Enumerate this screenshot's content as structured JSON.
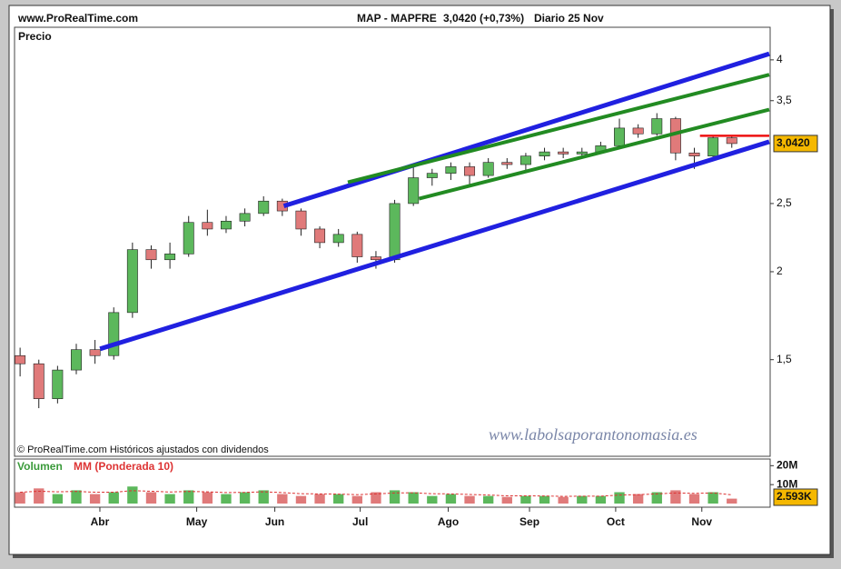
{
  "chart_data": {
    "type": "candlestick",
    "site": "www.ProRealTime.com",
    "symbol": "MAP - MAPFRE",
    "quote": "3,0420 (+0,73%)",
    "period": "Diario  25 Nov",
    "y_label": "Precio",
    "copyright": "© ProRealTime.com Históricos ajustados con dividendos",
    "watermark": "www.labolsaporantonomasia.es",
    "last_price_label": "3,0420",
    "log_scale": true,
    "up_color": "#5cb85c",
    "down_color": "#e07a7a",
    "xlim": [
      -0.2,
      40
    ],
    "xticks": [
      {
        "value": 4.26,
        "label": "Abr"
      },
      {
        "value": 9.43,
        "label": "May"
      },
      {
        "value": 13.6,
        "label": "Jun"
      },
      {
        "value": 18.16,
        "label": "Jul"
      },
      {
        "value": 22.86,
        "label": "Ago"
      },
      {
        "value": 27.2,
        "label": "Sep"
      },
      {
        "value": 31.8,
        "label": "Oct"
      },
      {
        "value": 36.4,
        "label": "Nov"
      }
    ],
    "ylim": [
      1.1,
      4.45
    ],
    "yticks": [
      {
        "value": 1.5,
        "label": "1,5"
      },
      2,
      {
        "value": 2.5,
        "label": "2,5"
      },
      {
        "value": 3.5,
        "label": "3,5"
      },
      4
    ],
    "open": [
      1.52,
      1.48,
      1.32,
      1.45,
      1.55,
      1.52,
      1.75,
      2.15,
      2.08,
      2.12,
      2.35,
      2.3,
      2.36,
      2.42,
      2.52,
      2.44,
      2.3,
      2.2,
      2.26,
      2.1,
      2.08,
      2.5,
      2.72,
      2.76,
      2.82,
      2.74,
      2.86,
      2.84,
      2.92,
      2.96,
      2.94,
      2.96,
      3.02,
      3.2,
      3.14,
      3.3,
      2.95,
      2.92,
      3.1
    ],
    "high": [
      1.56,
      1.5,
      1.47,
      1.58,
      1.6,
      1.78,
      2.2,
      2.18,
      2.2,
      2.4,
      2.45,
      2.4,
      2.46,
      2.56,
      2.54,
      2.46,
      2.32,
      2.3,
      2.28,
      2.14,
      2.53,
      2.85,
      2.8,
      2.86,
      2.86,
      2.9,
      2.9,
      2.95,
      3.0,
      3.0,
      3.0,
      3.06,
      3.3,
      3.24,
      3.36,
      3.32,
      3.0,
      3.12,
      3.12
    ],
    "low": [
      1.42,
      1.28,
      1.3,
      1.43,
      1.48,
      1.5,
      1.72,
      2.02,
      2.02,
      2.1,
      2.25,
      2.27,
      2.32,
      2.4,
      2.4,
      2.25,
      2.16,
      2.17,
      2.06,
      2.02,
      2.06,
      2.48,
      2.65,
      2.7,
      2.66,
      2.72,
      2.8,
      2.78,
      2.88,
      2.9,
      2.9,
      2.94,
      3.0,
      3.1,
      3.12,
      2.88,
      2.8,
      2.9,
      3.0
    ],
    "close": [
      1.48,
      1.32,
      1.45,
      1.55,
      1.52,
      1.75,
      2.15,
      2.08,
      2.12,
      2.35,
      2.3,
      2.36,
      2.42,
      2.52,
      2.44,
      2.3,
      2.2,
      2.26,
      2.1,
      2.08,
      2.5,
      2.72,
      2.76,
      2.82,
      2.74,
      2.86,
      2.84,
      2.92,
      2.96,
      2.94,
      2.96,
      3.02,
      3.2,
      3.14,
      3.3,
      2.95,
      2.92,
      3.1,
      3.042
    ],
    "trendlines": [
      {
        "color": "#2020e0",
        "x": [
          4.27,
          40
        ],
        "y": [
          1.554,
          3.06
        ]
      },
      {
        "color": "#2020e0",
        "x": [
          14.08,
          40
        ],
        "y": [
          2.48,
          4.08
        ]
      },
      {
        "color": "#228b22",
        "x": [
          17.5,
          40
        ],
        "y": [
          2.68,
          3.81
        ]
      },
      {
        "color": "#228b22",
        "x": [
          21.3,
          40
        ],
        "y": [
          2.54,
          3.4
        ]
      },
      {
        "color": "#ee1111",
        "x": [
          36.3,
          40
        ],
        "y": [
          3.12,
          3.12
        ]
      }
    ],
    "volume_label": "Volumen",
    "mm_label": "MM (Ponderada 10)",
    "mm_color": "#dd3333",
    "volume_last_label": "2.593K",
    "volume_ylim": [
      0,
      24
    ],
    "volume_yticks": [
      {
        "value": 20,
        "label": "20M"
      },
      {
        "value": 10,
        "label": "10M"
      }
    ],
    "volume": [
      6,
      8,
      5,
      7,
      5,
      6,
      9,
      6,
      5,
      7,
      6,
      5,
      6,
      7,
      5,
      4,
      5,
      5,
      4,
      6,
      7,
      6,
      4,
      5,
      4,
      4,
      3.5,
      4,
      4,
      3.5,
      4,
      4,
      6,
      5,
      6,
      7,
      5,
      6,
      2.593
    ],
    "mm": [
      6,
      6.5,
      6.2,
      6.4,
      6,
      6,
      6.8,
      6.5,
      6.1,
      6.4,
      6.2,
      5.8,
      5.9,
      6.2,
      5.8,
      5.2,
      5.1,
      5.0,
      4.7,
      5.1,
      5.6,
      5.7,
      5.2,
      5.1,
      4.8,
      4.5,
      4.1,
      4.1,
      4.0,
      3.8,
      3.9,
      3.9,
      4.5,
      4.7,
      5.1,
      5.6,
      5.4,
      5.6,
      4.6
    ]
  }
}
